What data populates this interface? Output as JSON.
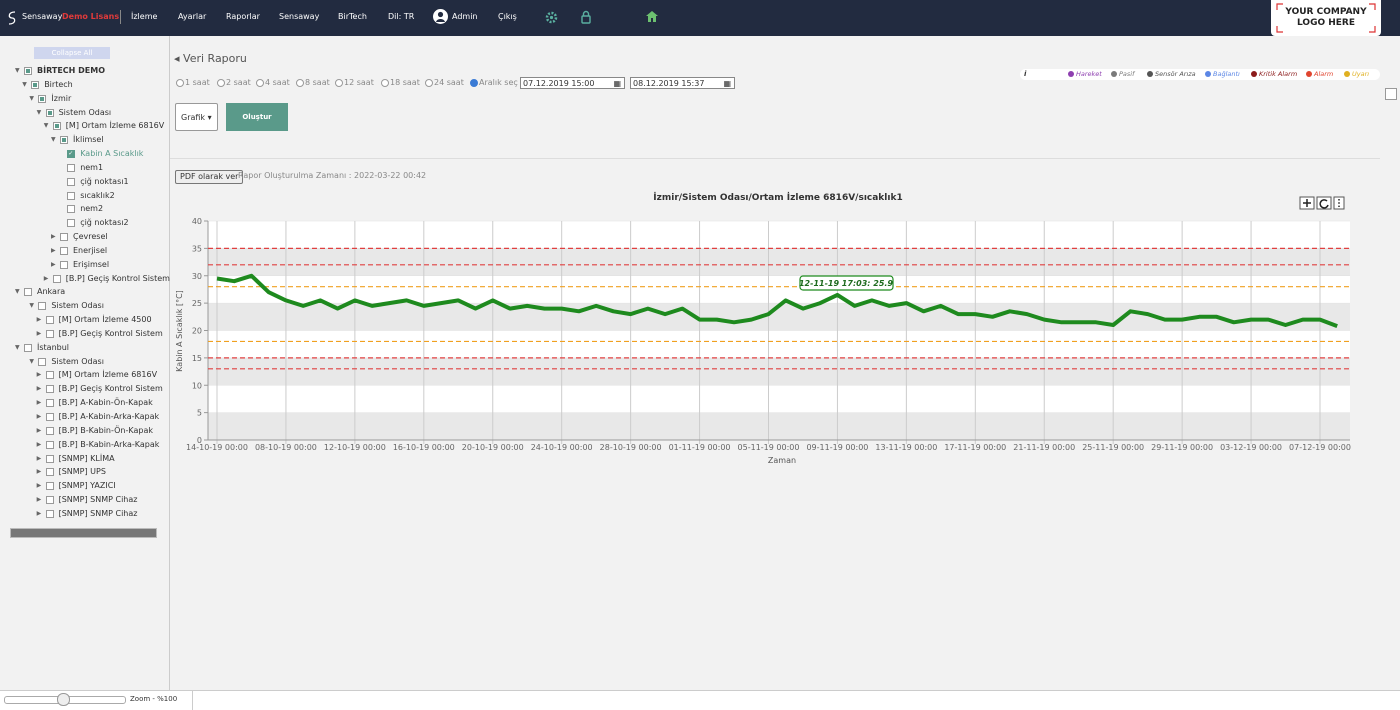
{
  "header": {
    "brand": "Sensaway",
    "license": "Demo Lisans",
    "nav": [
      "İzleme",
      "Ayarlar",
      "Raporlar",
      "Sensaway",
      "BirTech",
      "Dil: TR"
    ],
    "user": "Admin",
    "logout": "Çıkış",
    "logo": [
      "YOUR COMPANY",
      "LOGO HERE"
    ]
  },
  "sidebar": {
    "collapse_all": "Collapse All",
    "tree": [
      {
        "label": "BİRTECH DEMO",
        "level": 0,
        "state": "partial"
      },
      {
        "label": "Birtech",
        "level": 1,
        "state": "partial"
      },
      {
        "label": "İzmir",
        "level": 2,
        "state": "partial"
      },
      {
        "label": "Sistem Odası",
        "level": 3,
        "state": "partial"
      },
      {
        "label": "[M] Ortam İzleme 6816V",
        "level": 4,
        "state": "partial"
      },
      {
        "label": "İklimsel",
        "level": 5,
        "state": "partial"
      },
      {
        "label": "Kabin A Sıcaklık",
        "level": 6,
        "state": "checked",
        "leaf": true
      },
      {
        "label": "nem1",
        "level": 6,
        "state": "empty",
        "leaf": true
      },
      {
        "label": "çiğ noktası1",
        "level": 6,
        "state": "empty",
        "leaf": true
      },
      {
        "label": "sıcaklık2",
        "level": 6,
        "state": "empty",
        "leaf": true
      },
      {
        "label": "nem2",
        "level": 6,
        "state": "empty",
        "leaf": true
      },
      {
        "label": "çiğ noktası2",
        "level": 6,
        "state": "empty",
        "leaf": true
      },
      {
        "label": "Çevresel",
        "level": 5,
        "state": "empty"
      },
      {
        "label": "Enerjisel",
        "level": 5,
        "state": "empty"
      },
      {
        "label": "Erişimsel",
        "level": 5,
        "state": "empty"
      },
      {
        "label": "[B.P] Geçiş Kontrol Sistem",
        "level": 4,
        "state": "empty"
      },
      {
        "label": "Ankara",
        "level": 0,
        "state": "empty"
      },
      {
        "label": "Sistem Odası",
        "level": 2,
        "state": "empty"
      },
      {
        "label": "[M] Ortam İzleme 4500",
        "level": 3,
        "state": "empty"
      },
      {
        "label": "[B.P] Geçiş Kontrol Sistem",
        "level": 3,
        "state": "empty"
      },
      {
        "label": "İstanbul",
        "level": 0,
        "state": "empty"
      },
      {
        "label": "Sistem Odası",
        "level": 2,
        "state": "empty"
      },
      {
        "label": "[M] Ortam İzleme 6816V",
        "level": 3,
        "state": "empty"
      },
      {
        "label": "[B.P] Geçiş Kontrol Sistem",
        "level": 3,
        "state": "empty"
      },
      {
        "label": "[B.P] A-Kabin-Ön-Kapak",
        "level": 3,
        "state": "empty"
      },
      {
        "label": "[B.P] A-Kabin-Arka-Kapak",
        "level": 3,
        "state": "empty"
      },
      {
        "label": "[B.P] B-Kabin-Ön-Kapak",
        "level": 3,
        "state": "empty"
      },
      {
        "label": "[B.P] B-Kabin-Arka-Kapak",
        "level": 3,
        "state": "empty"
      },
      {
        "label": "[SNMP] KLİMA",
        "level": 3,
        "state": "empty"
      },
      {
        "label": "[SNMP] UPS",
        "level": 3,
        "state": "empty"
      },
      {
        "label": "[SNMP] YAZICI",
        "level": 3,
        "state": "empty"
      },
      {
        "label": "[SNMP] SNMP Cihaz",
        "level": 3,
        "state": "empty"
      },
      {
        "label": "[SNMP] SNMP Cihaz",
        "level": 3,
        "state": "empty"
      }
    ]
  },
  "footer": {
    "zoom": "Zoom - %100"
  },
  "report": {
    "back": "Veri Raporu",
    "ranges": [
      "1 saat",
      "2 saat",
      "4 saat",
      "8 saat",
      "12 saat",
      "18 saat",
      "24 saat",
      "Aralık seç"
    ],
    "range_selected_index": 7,
    "date_from": "07.12.2019 15:00",
    "date_to": "08.12.2019 15:37",
    "view_select": "Grafik",
    "create_button": "Oluştur",
    "pdf_button": "PDF olarak ver",
    "created_at": "Rapor Oluşturulma Zamanı : 2022-03-22 00:42",
    "legend_info": "i",
    "legend": [
      {
        "name": "Hareket",
        "color": "#8e3fb0"
      },
      {
        "name": "Pasif",
        "color": "#7a7a7a"
      },
      {
        "name": "Sensör Arıza",
        "color": "#555555"
      },
      {
        "name": "Bağlantı",
        "color": "#5b86e5"
      },
      {
        "name": "Kritik Alarm",
        "color": "#8b1a1a"
      },
      {
        "name": "Alarm",
        "color": "#e0452f"
      },
      {
        "name": "Uyarı",
        "color": "#e0b020"
      }
    ]
  },
  "chart_data": {
    "type": "line",
    "title": "İzmir/Sistem Odası/Ortam İzleme 6816V/sıcaklık1",
    "y_label": "Kabin A Sıcaklık [°C]",
    "x_label": "Zaman",
    "annotation": "12-11-19 17:03:  25.9",
    "ylim": [
      0,
      40
    ],
    "yticks": [
      0,
      5,
      10,
      15,
      20,
      25,
      30,
      35,
      40
    ],
    "grid": true,
    "categories": [
      "14-10-19 00:00",
      null,
      null,
      null,
      "08-10-19 00:00",
      null,
      null,
      null,
      "12-10-19 00:00",
      null,
      null,
      null,
      "16-10-19 00:00",
      null,
      null,
      null,
      "20-10-19 00:00",
      null,
      null,
      null,
      "24-10-19 00:00",
      null,
      null,
      null,
      "28-10-19 00:00",
      null,
      null,
      null,
      "01-11-19 00:00",
      null,
      null,
      null,
      "05-11-19 00:00",
      null,
      null,
      null,
      "09-11-19 00:00",
      null,
      null,
      null,
      "13-11-19 00:00",
      null,
      null,
      null,
      "17-11-19 00:00",
      null,
      null,
      null,
      "21-11-19 00:00",
      null,
      null,
      null,
      "25-11-19 00:00",
      null,
      null,
      null,
      "29-11-19 00:00",
      null,
      null,
      null,
      "03-12-19 00:00",
      null,
      null,
      null,
      "07-12-19 00:00",
      null
    ],
    "series": [
      {
        "color": "#1e8a1e",
        "values": [
          29.5,
          29,
          30,
          27,
          25.5,
          24.5,
          25.5,
          24,
          25.5,
          24.5,
          25,
          25.5,
          24.5,
          25,
          25.5,
          24,
          25.5,
          24,
          24.5,
          24,
          24,
          23.5,
          24.5,
          23.5,
          23,
          24,
          23,
          24,
          22,
          22,
          21.5,
          22,
          23,
          25.5,
          24,
          25,
          26.5,
          24.5,
          25.5,
          24.5,
          25,
          23.5,
          24.5,
          23,
          23,
          22.5,
          23.5,
          23,
          22,
          21.5,
          21.5,
          21.5,
          21,
          23.5,
          23,
          22,
          22,
          22.5,
          22.5,
          21.5,
          22,
          22,
          21,
          22,
          22,
          20.8
        ]
      }
    ],
    "thresholds": [
      {
        "value": 35,
        "color": "#e04040"
      },
      {
        "value": 32,
        "color": "#e04040"
      },
      {
        "value": 28,
        "color": "#f0a020"
      },
      {
        "value": 18,
        "color": "#f0a020"
      },
      {
        "value": 15,
        "color": "#e04040"
      },
      {
        "value": 13,
        "color": "#e04040"
      }
    ]
  }
}
